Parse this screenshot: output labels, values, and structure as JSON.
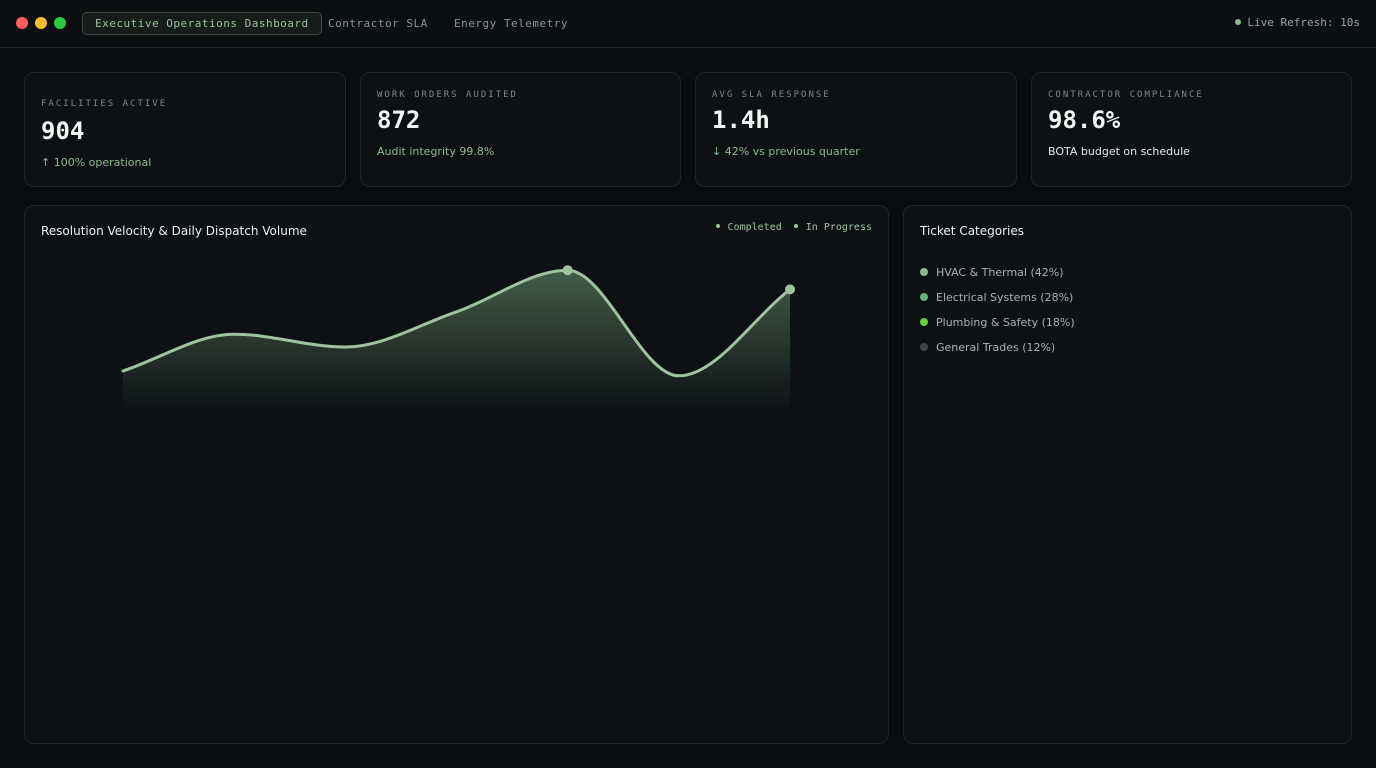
{
  "window": {
    "tabs": [
      {
        "label": "Executive Operations Dashboard",
        "active": true
      },
      {
        "label": "Contractor SLA",
        "active": false
      },
      {
        "label": "Energy Telemetry",
        "active": false
      }
    ],
    "live_refresh": "Live Refresh: 10s"
  },
  "kpis": [
    {
      "label": "FACILITIES ACTIVE",
      "value": "904",
      "sub": "↑ 100% operational"
    },
    {
      "label": "WORK ORDERS AUDITED",
      "value": "872",
      "sub": "Audit integrity 99.8%"
    },
    {
      "label": "AVG SLA RESPONSE",
      "value": "1.4h",
      "sub": "↓ 42% vs previous quarter"
    },
    {
      "label": "CONTRACTOR COMPLIANCE",
      "value": "98.6%",
      "sub": "BOTA budget on schedule"
    }
  ],
  "chart_panel": {
    "title": "Resolution Velocity & Daily Dispatch Volume",
    "legend": [
      "Completed",
      "In Progress"
    ]
  },
  "chart_data": {
    "type": "area",
    "title": "Resolution Velocity & Daily Dispatch Volume",
    "series": [
      {
        "name": "Completed",
        "values": [
          25,
          48,
          40,
          62,
          88,
          22,
          76
        ]
      }
    ],
    "highlighted_points": [
      4,
      6
    ],
    "ylim": [
      0,
      100
    ],
    "grid": false,
    "legend_position": "top-right",
    "colors": {
      "line": "#9fc3a2",
      "fill": "#6f9a74"
    }
  },
  "categories_panel": {
    "title": "Ticket Categories",
    "items": [
      {
        "label": "HVAC & Thermal (42%)",
        "color": "#8fb891"
      },
      {
        "label": "Electrical Systems (28%)",
        "color": "#5fb584"
      },
      {
        "label": "Plumbing & Safety (18%)",
        "color": "#66d13a"
      },
      {
        "label": "General Trades (12%)",
        "color": "#3d4340"
      }
    ]
  }
}
